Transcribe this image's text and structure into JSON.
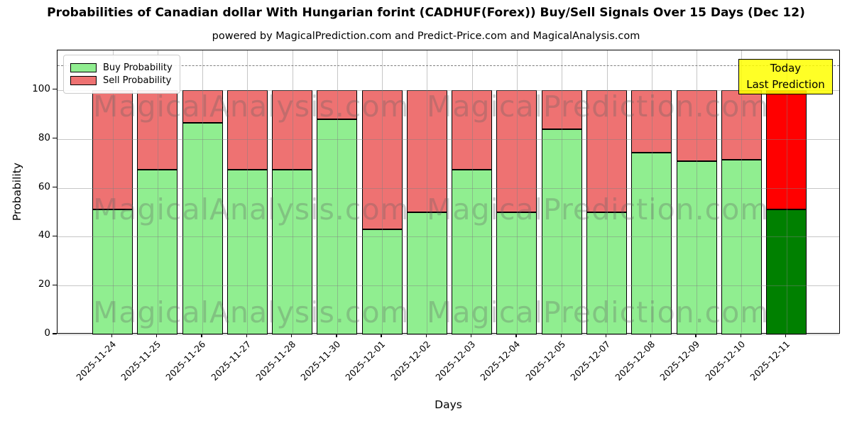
{
  "title": "Probabilities of Canadian dollar With Hungarian forint (CADHUF(Forex)) Buy/Sell Signals Over 15 Days (Dec 12)",
  "subtitle": "powered by MagicalPrediction.com and Predict-Price.com and MagicalAnalysis.com",
  "chart_data": {
    "type": "bar",
    "stacked": true,
    "title": "Probabilities of Canadian dollar With Hungarian forint (CADHUF(Forex)) Buy/Sell Signals Over 15 Days (Dec 12)",
    "xlabel": "Days",
    "ylabel": "Probability",
    "categories": [
      "2025-11-24",
      "2025-11-25",
      "2025-11-26",
      "2025-11-27",
      "2025-11-28",
      "2025-11-30",
      "2025-12-01",
      "2025-12-02",
      "2025-12-03",
      "2025-12-04",
      "2025-12-05",
      "2025-12-07",
      "2025-12-08",
      "2025-12-09",
      "2025-12-10",
      "2025-12-11"
    ],
    "series": [
      {
        "name": "Buy Probability",
        "color": "#90ee90",
        "values": [
          51,
          67.5,
          86.5,
          67.5,
          67.5,
          88,
          43,
          50,
          67.5,
          50,
          84,
          50,
          74.5,
          71,
          71.5,
          51
        ]
      },
      {
        "name": "Sell Probability",
        "color": "#ee7272",
        "values": [
          49,
          32.5,
          13.5,
          32.5,
          32.5,
          12,
          57,
          50,
          32.5,
          50,
          16,
          50,
          25.5,
          29,
          28.5,
          49
        ]
      }
    ],
    "today_bar": {
      "category": "2025-12-11",
      "index": 15,
      "buy_color": "#008000",
      "sell_color": "#ff0000"
    },
    "yticks": [
      0,
      20,
      40,
      60,
      80,
      100
    ],
    "ylim": [
      0,
      116.2
    ],
    "dashed_line_y": 110,
    "grid": true,
    "legend_position": "upper left"
  },
  "legend": {
    "items": [
      {
        "label": "Buy Probability",
        "color": "#90ee90"
      },
      {
        "label": "Sell Probability",
        "color": "#ee7272"
      }
    ]
  },
  "annotation_box": {
    "lines": [
      "Today",
      "Last Prediction"
    ],
    "bg": "#ffff00"
  },
  "watermarks": {
    "left_text": "MagicalAnalysis.com",
    "right_text": "MagicalPrediction.com"
  }
}
